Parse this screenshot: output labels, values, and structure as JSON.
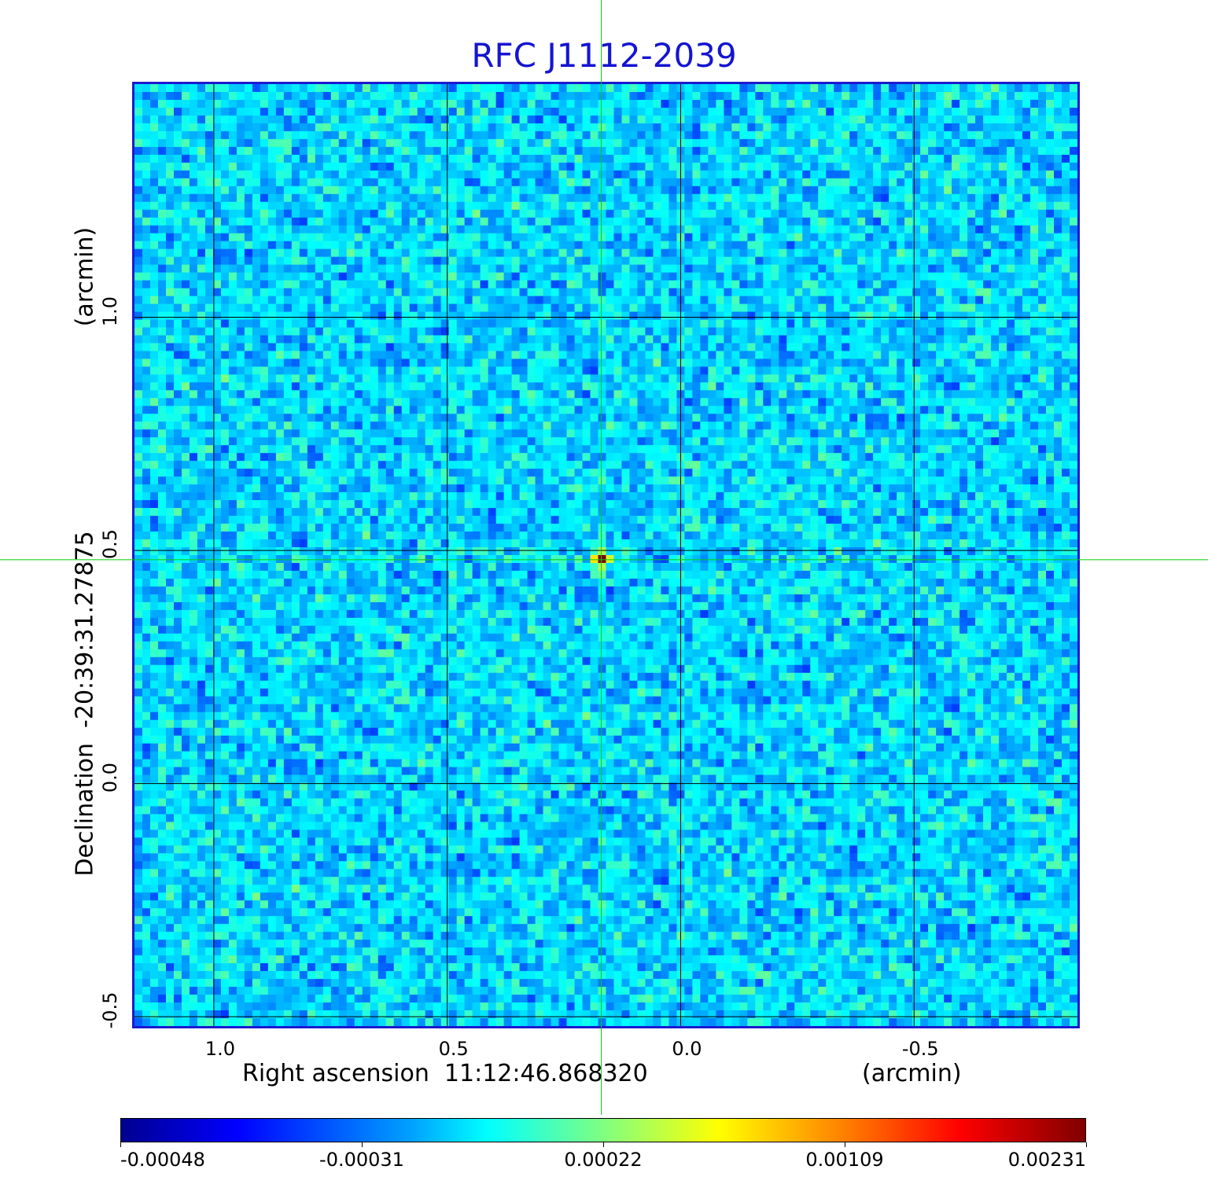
{
  "chart_data": {
    "type": "heatmap",
    "title": "RFC J1112-2039",
    "xlabel": "Right ascension  11:12:46.868320",
    "xunit": "(arcmin)",
    "ylabel": "Declination  -20:39:31.27875",
    "yunit": "(arcmin)",
    "xlim": [
      1.17,
      -0.85
    ],
    "ylim": [
      -0.52,
      1.5
    ],
    "x_ticks": [
      1.0,
      0.5,
      0.0,
      -0.5
    ],
    "x_tick_labels": [
      "1.0",
      "0.5",
      "0.0",
      "-0.5"
    ],
    "y_ticks": [
      1.0,
      0.5,
      0.0,
      -0.5
    ],
    "y_tick_labels": [
      "1.0",
      "0.5",
      "0.0",
      "-0.5"
    ],
    "grid": true,
    "crosshair": {
      "x": 0.17,
      "y": 0.48,
      "color": "#00d000"
    },
    "peak": {
      "x": 0.17,
      "y": 0.48,
      "value": 0.00231
    },
    "colormap": "jet",
    "colorbar": {
      "range": [
        -0.00048,
        0.00231
      ],
      "tick_labels": [
        "-0.00048",
        "-0.00031",
        "0.00022",
        "0.00109",
        "0.00231"
      ]
    }
  },
  "colors": {
    "title": "#1414d2",
    "frame": "#1a1ad0",
    "grid": "#000000",
    "crosshair": "#00d000"
  }
}
